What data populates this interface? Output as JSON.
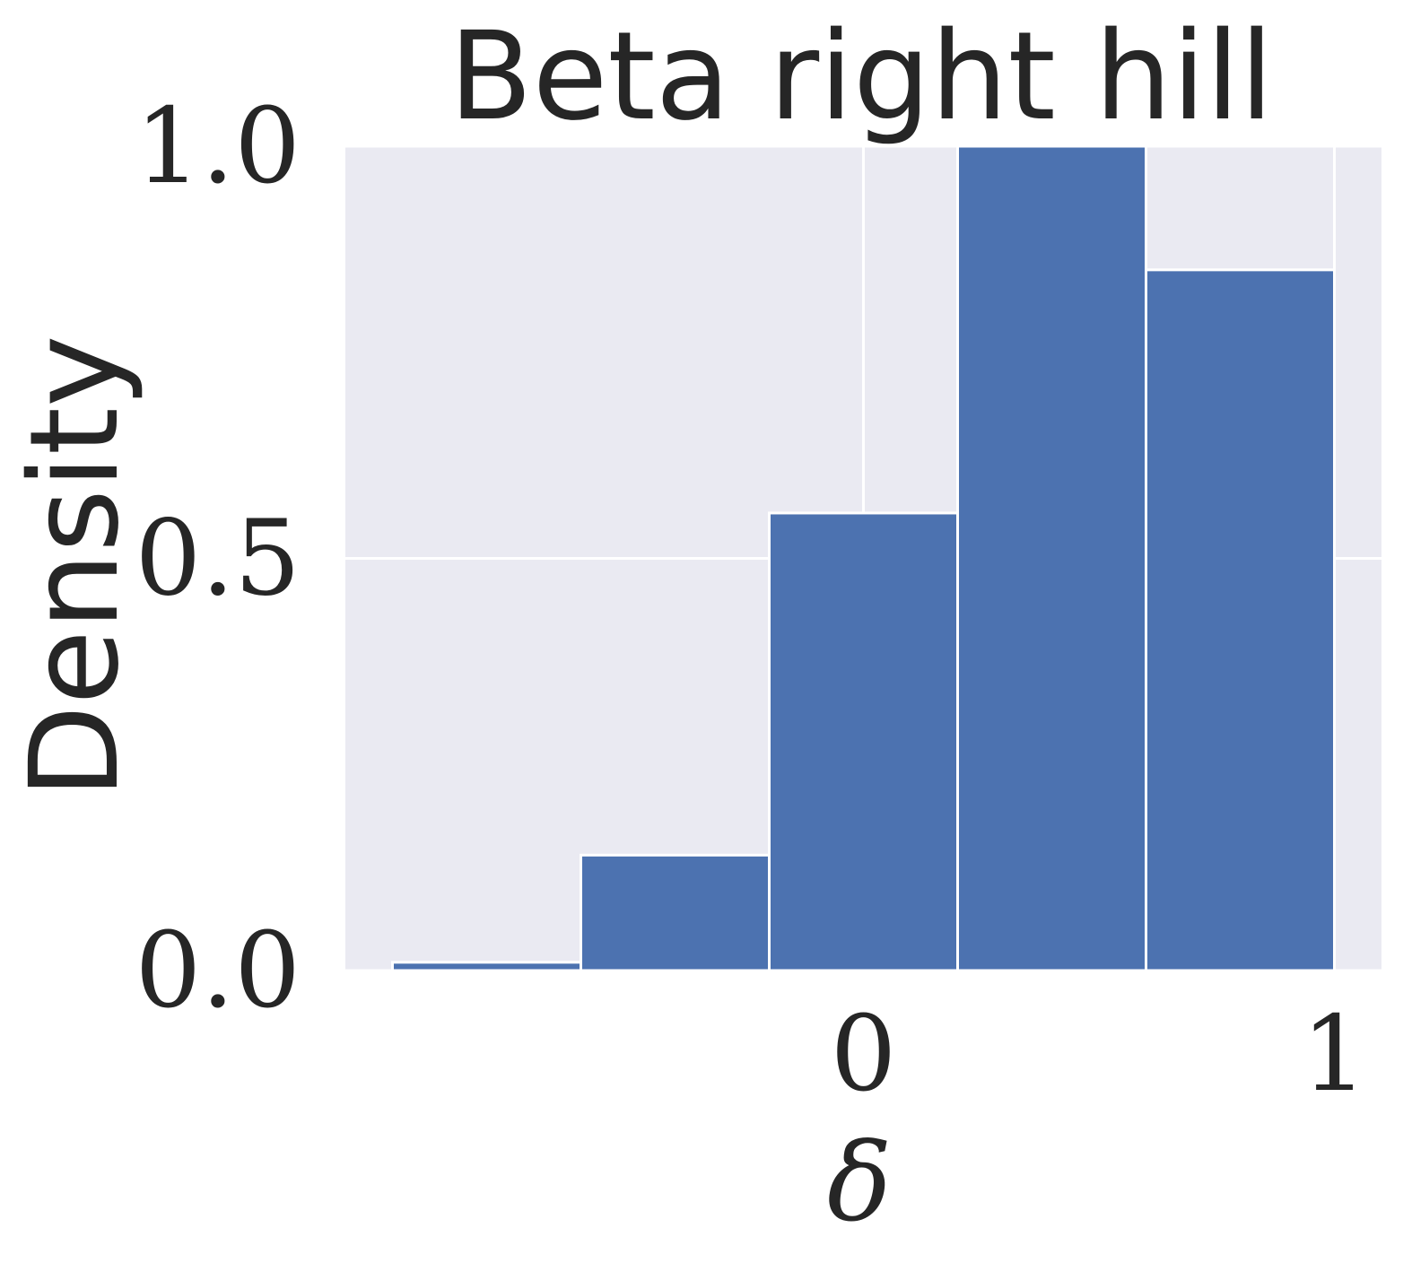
{
  "chart_data": {
    "type": "bar",
    "title": "Beta right hill",
    "xlabel": "δ",
    "ylabel": "Density",
    "bin_edges": [
      -1.0,
      -0.6,
      -0.2,
      0.2,
      0.6,
      1.0
    ],
    "values": [
      0.01,
      0.14,
      0.555,
      1.0,
      0.85
    ],
    "xlim": [
      -1.1,
      1.1
    ],
    "ylim": [
      0.0,
      1.0
    ],
    "xticks": [
      0,
      1
    ],
    "xtick_labels": [
      "0",
      "1"
    ],
    "yticks": [
      0.0,
      0.5,
      1.0
    ],
    "ytick_labels": [
      "0.0",
      "0.5",
      "1.0"
    ],
    "grid": true,
    "colors": {
      "bar": "#4c72b0",
      "plot_background": "#eaeaf2",
      "grid": "#ffffff",
      "text": "#262626"
    }
  }
}
